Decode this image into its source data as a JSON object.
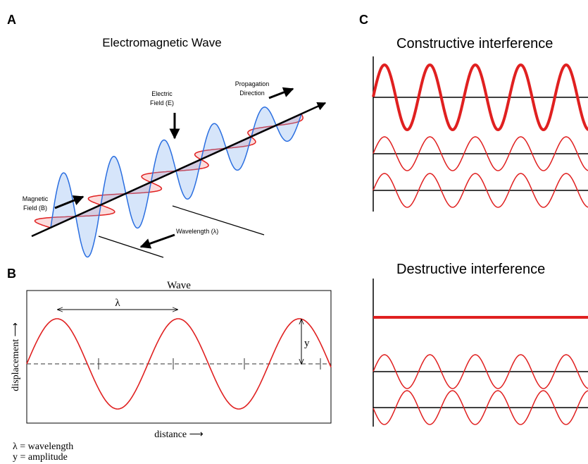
{
  "panel_a": {
    "letter": "A",
    "title": "Electromagnetic Wave",
    "electric_field": [
      "Electric",
      "Field (E)"
    ],
    "propagation": [
      "Propagation",
      "Direction"
    ],
    "magnetic_field": [
      "Magnetic",
      "Field (B)"
    ],
    "wavelength": "Wavelength (λ)"
  },
  "panel_b": {
    "letter": "B",
    "title": "Wave",
    "wavelength_symbol": "λ",
    "amplitude_symbol": "y",
    "y_axis": "displacement ⟶",
    "x_axis": "distance ⟶",
    "legend": [
      "λ = wavelength",
      "y = amplitude"
    ]
  },
  "panel_c": {
    "letter": "C",
    "constructive": "Constructive interference",
    "destructive": "Destructive interference"
  }
}
